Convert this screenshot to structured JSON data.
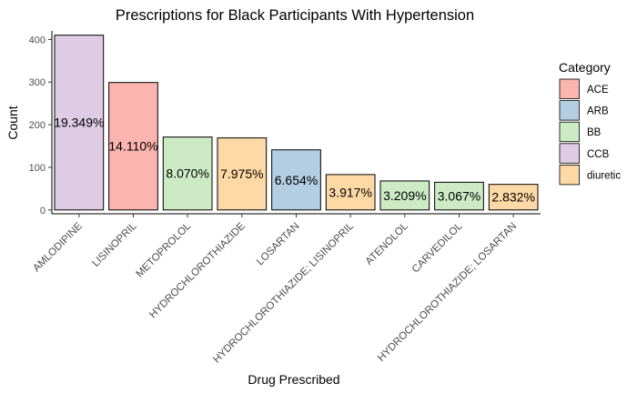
{
  "chart_data": {
    "type": "bar",
    "title": "Prescriptions for Black Participants With Hypertension",
    "xlabel": "Drug Prescribed",
    "ylabel": "Count",
    "ylim": [
      -9,
      420
    ],
    "yticks": [
      0,
      100,
      200,
      300,
      400
    ],
    "grid": false,
    "legend_position": "right",
    "legend_title": "Category",
    "categories_legend": [
      {
        "name": "ACE",
        "color": "#fbb4ae"
      },
      {
        "name": "ARB",
        "color": "#b3cde3"
      },
      {
        "name": "BB",
        "color": "#ccebc5"
      },
      {
        "name": "CCB",
        "color": "#decbe4"
      },
      {
        "name": "diuretic",
        "color": "#fed9a6"
      }
    ],
    "bars": [
      {
        "drug": "AMLODIPINE",
        "value": 410,
        "category": "CCB",
        "label": "19.349%"
      },
      {
        "drug": "LISINOPRIL",
        "value": 299,
        "category": "ACE",
        "label": "14.110%"
      },
      {
        "drug": "METOPROLOL",
        "value": 171,
        "category": "BB",
        "label": "8.070%"
      },
      {
        "drug": "HYDROCHLOROTHIAZIDE",
        "value": 169,
        "category": "diuretic",
        "label": "7.975%"
      },
      {
        "drug": "LOSARTAN",
        "value": 141,
        "category": "ARB",
        "label": "6.654%"
      },
      {
        "drug": "HYDROCHLOROTHIAZIDE; LISINOPRIL",
        "value": 83,
        "category": "diuretic",
        "label": "3.917%"
      },
      {
        "drug": "ATENOLOL",
        "value": 68,
        "category": "BB",
        "label": "3.209%"
      },
      {
        "drug": "CARVEDILOL",
        "value": 65,
        "category": "BB",
        "label": "3.067%"
      },
      {
        "drug": "HYDROCHLOROTHIAZIDE; LOSARTAN",
        "value": 60,
        "category": "diuretic",
        "label": "2.832%"
      }
    ]
  }
}
